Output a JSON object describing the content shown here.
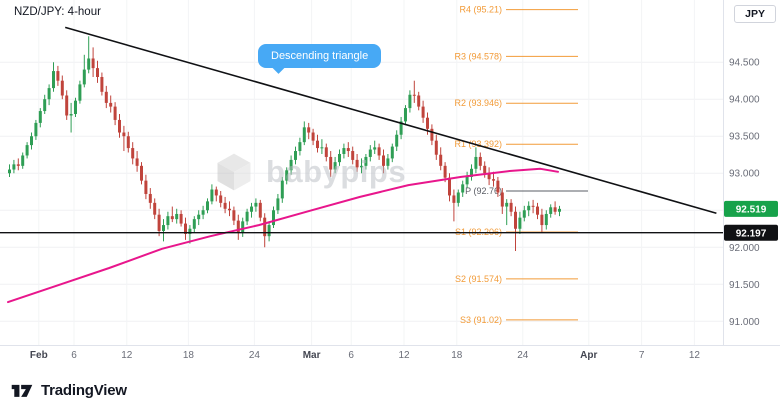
{
  "header": {
    "title": "NZD/JPY: 4-hour"
  },
  "axis": {
    "currency_label": "JPY"
  },
  "annotations": {
    "callout": {
      "text": "Descending triangle",
      "color": "#47a9f5"
    },
    "watermark": {
      "text": "babypips"
    }
  },
  "footer": {
    "brand": "TradingView"
  },
  "price_badges": {
    "current": {
      "value": "92.519",
      "color": "#17a24a"
    },
    "support": {
      "value": "92.197",
      "color": "#101114"
    }
  },
  "chart_data": {
    "type": "candlestick",
    "symbol": "NZD/JPY",
    "timeframe": "4-hour",
    "title": "NZD/JPY: 4-hour",
    "ylim": [
      90.68,
      95.34
    ],
    "y_ticks": [
      94.5,
      94.0,
      93.5,
      93.0,
      92.5,
      92.0,
      91.5,
      91.0
    ],
    "x_ticks": [
      {
        "label": "Feb",
        "i": 7,
        "month": true
      },
      {
        "label": "6",
        "i": 15
      },
      {
        "label": "12",
        "i": 27
      },
      {
        "label": "18",
        "i": 41
      },
      {
        "label": "24",
        "i": 56
      },
      {
        "label": "Mar",
        "i": 69,
        "month": true
      },
      {
        "label": "6",
        "i": 78
      },
      {
        "label": "12",
        "i": 90
      },
      {
        "label": "18",
        "i": 102
      },
      {
        "label": "24",
        "i": 117
      },
      {
        "label": "Apr",
        "i": 132,
        "month": true
      },
      {
        "label": "7",
        "i": 144
      },
      {
        "label": "12",
        "i": 156
      }
    ],
    "up_color": "#2f9e55",
    "down_color": "#c0443c",
    "ma_color": "#e8168c",
    "pivot_color": "#f29b38",
    "pivot_levels": [
      {
        "label": "R4 (95.21)",
        "price": 95.21
      },
      {
        "label": "R3 (94.578)",
        "price": 94.578
      },
      {
        "label": "R2 (93.946)",
        "price": 93.946
      },
      {
        "label": "R1 (93.392)",
        "price": 93.392
      },
      {
        "label": "P (92.76)",
        "price": 92.76,
        "muted": true
      },
      {
        "label": "S1 (92.206)",
        "price": 92.206
      },
      {
        "label": "S2 (91.574)",
        "price": 91.574
      },
      {
        "label": "S3 (91.02)",
        "price": 91.02
      }
    ],
    "support_line": {
      "price": 92.197,
      "color": "#101114"
    },
    "trendline": {
      "x1_index": 13,
      "price1": 94.97,
      "x2_index": 161,
      "price2": 92.46,
      "color": "#101114"
    },
    "ma_anchors": [
      [
        0,
        91.26
      ],
      [
        12,
        91.5
      ],
      [
        23,
        91.72
      ],
      [
        35,
        91.98
      ],
      [
        46,
        92.15
      ],
      [
        57,
        92.3
      ],
      [
        69,
        92.5
      ],
      [
        80,
        92.68
      ],
      [
        91,
        92.84
      ],
      [
        103,
        92.95
      ],
      [
        114,
        93.03
      ],
      [
        121,
        93.06
      ],
      [
        125,
        93.02
      ]
    ],
    "candles": [
      [
        93.0,
        93.12,
        92.95,
        93.05
      ],
      [
        93.05,
        93.18,
        93.0,
        93.12
      ],
      [
        93.12,
        93.2,
        93.04,
        93.1
      ],
      [
        93.1,
        93.28,
        93.06,
        93.24
      ],
      [
        93.24,
        93.42,
        93.2,
        93.38
      ],
      [
        93.38,
        93.55,
        93.32,
        93.5
      ],
      [
        93.5,
        93.72,
        93.45,
        93.68
      ],
      [
        93.68,
        93.88,
        93.62,
        93.84
      ],
      [
        93.84,
        94.06,
        93.8,
        94.0
      ],
      [
        94.0,
        94.2,
        93.92,
        94.15
      ],
      [
        94.15,
        94.5,
        94.1,
        94.38
      ],
      [
        94.38,
        94.45,
        94.18,
        94.25
      ],
      [
        94.25,
        94.32,
        94.0,
        94.05
      ],
      [
        94.05,
        94.12,
        93.72,
        93.78
      ],
      [
        93.78,
        93.95,
        93.55,
        93.8
      ],
      [
        93.8,
        94.02,
        93.76,
        93.98
      ],
      [
        93.98,
        94.25,
        93.94,
        94.2
      ],
      [
        94.2,
        94.6,
        94.16,
        94.4
      ],
      [
        94.4,
        94.85,
        94.35,
        94.55
      ],
      [
        94.55,
        94.7,
        94.3,
        94.42
      ],
      [
        94.42,
        94.52,
        94.22,
        94.3
      ],
      [
        94.3,
        94.36,
        94.05,
        94.1
      ],
      [
        94.1,
        94.18,
        93.88,
        93.95
      ],
      [
        93.95,
        94.05,
        93.82,
        93.9
      ],
      [
        93.9,
        93.96,
        93.65,
        93.72
      ],
      [
        93.72,
        93.8,
        93.48,
        93.55
      ],
      [
        93.55,
        93.64,
        93.3,
        93.5
      ],
      [
        93.5,
        93.56,
        93.28,
        93.34
      ],
      [
        93.34,
        93.42,
        93.12,
        93.2
      ],
      [
        93.2,
        93.3,
        93.02,
        93.1
      ],
      [
        93.1,
        93.15,
        92.85,
        92.9
      ],
      [
        92.9,
        92.98,
        92.65,
        92.72
      ],
      [
        92.72,
        92.8,
        92.52,
        92.6
      ],
      [
        92.6,
        92.66,
        92.38,
        92.44
      ],
      [
        92.44,
        92.52,
        92.15,
        92.22
      ],
      [
        92.22,
        92.38,
        92.08,
        92.3
      ],
      [
        92.3,
        92.48,
        92.24,
        92.42
      ],
      [
        92.42,
        92.55,
        92.34,
        92.38
      ],
      [
        92.38,
        92.52,
        92.32,
        92.45
      ],
      [
        92.45,
        92.5,
        92.28,
        92.32
      ],
      [
        92.32,
        92.4,
        92.1,
        92.18
      ],
      [
        92.18,
        92.3,
        92.05,
        92.25
      ],
      [
        92.25,
        92.42,
        92.2,
        92.38
      ],
      [
        92.38,
        92.5,
        92.3,
        92.44
      ],
      [
        92.44,
        92.56,
        92.38,
        92.5
      ],
      [
        92.5,
        92.66,
        92.46,
        92.62
      ],
      [
        92.62,
        92.85,
        92.58,
        92.78
      ],
      [
        92.78,
        92.82,
        92.62,
        92.7
      ],
      [
        92.7,
        92.76,
        92.54,
        92.6
      ],
      [
        92.6,
        92.68,
        92.46,
        92.52
      ],
      [
        92.52,
        92.62,
        92.42,
        92.5
      ],
      [
        92.5,
        92.55,
        92.3,
        92.36
      ],
      [
        92.36,
        92.44,
        92.1,
        92.2
      ],
      [
        92.2,
        92.4,
        92.14,
        92.35
      ],
      [
        92.35,
        92.52,
        92.3,
        92.48
      ],
      [
        92.48,
        92.6,
        92.4,
        92.55
      ],
      [
        92.55,
        92.66,
        92.48,
        92.6
      ],
      [
        92.6,
        92.64,
        92.35,
        92.4
      ],
      [
        92.4,
        92.46,
        92.0,
        92.15
      ],
      [
        92.15,
        92.35,
        92.08,
        92.3
      ],
      [
        92.3,
        92.55,
        92.26,
        92.5
      ],
      [
        92.5,
        92.72,
        92.45,
        92.66
      ],
      [
        92.66,
        92.95,
        92.6,
        92.9
      ],
      [
        92.9,
        93.08,
        92.85,
        93.04
      ],
      [
        93.04,
        93.24,
        92.98,
        93.18
      ],
      [
        93.18,
        93.36,
        93.12,
        93.3
      ],
      [
        93.3,
        93.48,
        93.24,
        93.42
      ],
      [
        93.42,
        93.7,
        93.38,
        93.62
      ],
      [
        93.62,
        93.68,
        93.46,
        93.55
      ],
      [
        93.55,
        93.6,
        93.38,
        93.44
      ],
      [
        93.44,
        93.52,
        93.28,
        93.34
      ],
      [
        93.34,
        93.46,
        93.26,
        93.35
      ],
      [
        93.35,
        93.4,
        93.16,
        93.22
      ],
      [
        93.22,
        93.3,
        92.95,
        93.05
      ],
      [
        93.05,
        93.22,
        93.0,
        93.15
      ],
      [
        93.15,
        93.32,
        93.1,
        93.26
      ],
      [
        93.26,
        93.4,
        93.2,
        93.34
      ],
      [
        93.34,
        93.42,
        93.22,
        93.3
      ],
      [
        93.3,
        93.36,
        93.12,
        93.18
      ],
      [
        93.18,
        93.26,
        93.02,
        93.08
      ],
      [
        93.08,
        93.2,
        93.0,
        93.1
      ],
      [
        93.1,
        93.26,
        93.05,
        93.22
      ],
      [
        93.22,
        93.38,
        93.16,
        93.32
      ],
      [
        93.32,
        93.44,
        93.26,
        93.35
      ],
      [
        93.35,
        93.4,
        93.18,
        93.24
      ],
      [
        93.24,
        93.32,
        93.0,
        93.1
      ],
      [
        93.1,
        93.26,
        93.05,
        93.2
      ],
      [
        93.2,
        93.4,
        93.15,
        93.36
      ],
      [
        93.36,
        93.58,
        93.3,
        93.52
      ],
      [
        93.52,
        93.76,
        93.46,
        93.7
      ],
      [
        93.7,
        93.92,
        93.65,
        93.88
      ],
      [
        93.88,
        94.12,
        93.82,
        94.06
      ],
      [
        94.06,
        94.25,
        93.95,
        94.05
      ],
      [
        94.05,
        94.1,
        93.85,
        93.9
      ],
      [
        93.9,
        93.98,
        93.68,
        93.75
      ],
      [
        93.75,
        93.82,
        93.52,
        93.6
      ],
      [
        93.6,
        93.66,
        93.38,
        93.44
      ],
      [
        93.44,
        93.52,
        93.18,
        93.25
      ],
      [
        93.25,
        93.35,
        93.04,
        93.1
      ],
      [
        93.1,
        93.15,
        92.88,
        92.94
      ],
      [
        92.94,
        93.0,
        92.62,
        92.7
      ],
      [
        92.7,
        92.78,
        92.35,
        92.6
      ],
      [
        92.6,
        92.78,
        92.55,
        92.74
      ],
      [
        92.74,
        92.9,
        92.68,
        92.85
      ],
      [
        92.85,
        93.02,
        92.8,
        92.95
      ],
      [
        92.95,
        93.12,
        92.9,
        93.06
      ],
      [
        93.06,
        93.35,
        93.0,
        93.22
      ],
      [
        93.22,
        93.28,
        93.04,
        93.1
      ],
      [
        93.1,
        93.16,
        92.94,
        93.0
      ],
      [
        93.0,
        93.08,
        92.84,
        92.92
      ],
      [
        92.92,
        93.02,
        92.82,
        92.9
      ],
      [
        92.9,
        92.95,
        92.68,
        92.74
      ],
      [
        92.74,
        92.8,
        92.45,
        92.55
      ],
      [
        92.55,
        92.65,
        92.3,
        92.6
      ],
      [
        92.6,
        92.65,
        92.42,
        92.48
      ],
      [
        92.48,
        92.55,
        91.95,
        92.25
      ],
      [
        92.25,
        92.48,
        92.18,
        92.4
      ],
      [
        92.4,
        92.56,
        92.35,
        92.5
      ],
      [
        92.5,
        92.62,
        92.42,
        92.56
      ],
      [
        92.56,
        92.64,
        92.46,
        92.55
      ],
      [
        92.55,
        92.6,
        92.38,
        92.44
      ],
      [
        92.44,
        92.52,
        92.2,
        92.3
      ],
      [
        92.3,
        92.5,
        92.24,
        92.45
      ],
      [
        92.45,
        92.58,
        92.4,
        92.54
      ],
      [
        92.54,
        92.62,
        92.44,
        92.48
      ],
      [
        92.48,
        92.56,
        92.42,
        92.519
      ]
    ]
  }
}
